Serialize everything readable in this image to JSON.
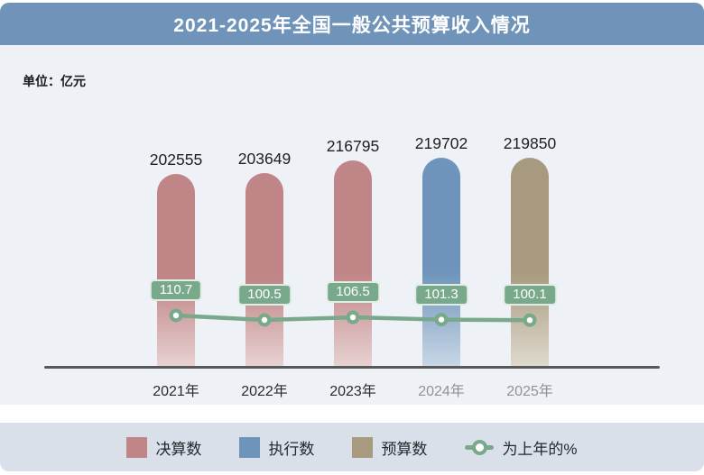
{
  "header": {
    "title": "2021-2025年全国一般公共预算收入情况"
  },
  "unit_label": "单位：亿元",
  "colors": {
    "header_bg": "#6f93b9",
    "body_bg": "#eef1f6",
    "footer_bg": "#d9e0ea",
    "axis": "#58585a",
    "bar_final": "#c08587",
    "bar_execution": "#6f94bb",
    "bar_budget": "#a89a7e",
    "line_green": "#79a98b"
  },
  "chart_data": {
    "type": "bar+line",
    "title": "2021-2025年全国一般公共预算收入情况",
    "unit": "亿元",
    "categories": [
      {
        "label": "2021年",
        "muted": false
      },
      {
        "label": "2022年",
        "muted": false
      },
      {
        "label": "2023年",
        "muted": false
      },
      {
        "label": "2024年",
        "muted": true
      },
      {
        "label": "2025年",
        "muted": true
      }
    ],
    "bars": [
      {
        "category": "2021年",
        "value": 202555,
        "series": "决算数",
        "color": "#c08587"
      },
      {
        "category": "2022年",
        "value": 203649,
        "series": "决算数",
        "color": "#c08587"
      },
      {
        "category": "2023年",
        "value": 216795,
        "series": "决算数",
        "color": "#c08587"
      },
      {
        "category": "2024年",
        "value": 219702,
        "series": "执行数",
        "color": "#6f94bb"
      },
      {
        "category": "2025年",
        "value": 219850,
        "series": "预算数",
        "color": "#a89a7e"
      }
    ],
    "line_series": {
      "name": "为上年的%",
      "values": [
        110.7,
        100.5,
        106.5,
        101.3,
        100.1
      ],
      "color": "#79a98b"
    },
    "value_labels_shown": true,
    "grid": false,
    "legend_position": "bottom"
  },
  "legend": {
    "items": [
      {
        "label": "决算数",
        "swatch": "square",
        "color": "#c08587"
      },
      {
        "label": "执行数",
        "swatch": "square",
        "color": "#6f94bb"
      },
      {
        "label": "预算数",
        "swatch": "square",
        "color": "#a89a7e"
      },
      {
        "label": "为上年的%",
        "swatch": "line-marker",
        "color": "#79a98b"
      }
    ]
  }
}
